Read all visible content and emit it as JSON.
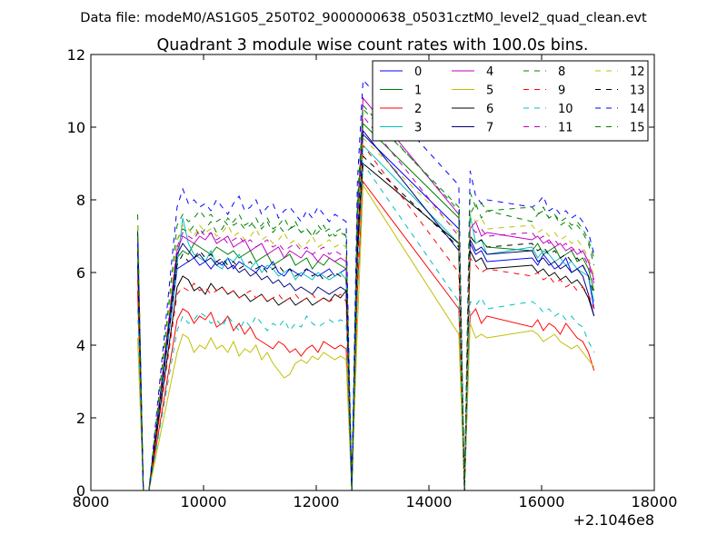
{
  "figure": {
    "suptitle": "Data file: modeM0/AS1G05_250T02_9000000638_05031cztM0_level2_quad_clean.evt",
    "x_offset_label": "+2.1046e8"
  },
  "chart_data": {
    "type": "line",
    "title": "Quadrant 3 module wise count rates with 100.0s bins.",
    "xlabel": "",
    "ylabel": "",
    "xlim": [
      8000,
      18000
    ],
    "ylim": [
      0,
      12
    ],
    "xticks": [
      8000,
      10000,
      12000,
      14000,
      16000,
      18000
    ],
    "yticks": [
      0,
      2,
      4,
      6,
      8,
      10,
      12
    ],
    "grid": false,
    "legend_position": "top-right",
    "legend_columns": 4,
    "segments": [
      [
        8830,
        9030
      ],
      [
        9530,
        12830
      ],
      [
        14530,
        15030
      ],
      [
        15830,
        17330
      ]
    ],
    "bin_width": 100,
    "series": [
      {
        "name": "0",
        "color": "#0000ff",
        "dash": "solid",
        "values": [
          7.0,
          0,
          0,
          6.1,
          6.2,
          6.3,
          6.4,
          6.2,
          6.3,
          6.1,
          6.3,
          6.2,
          6.4,
          6.1,
          6.3,
          6.2,
          6.1,
          6.0,
          6.2,
          6.1,
          6.3,
          6.0,
          5.9,
          6.1,
          6.0,
          5.9,
          6.1,
          6.0,
          5.9,
          6.0,
          6.1,
          5.9,
          6.0,
          6.1,
          0,
          7.5,
          9.8,
          7.2,
          0,
          6.8,
          6.5,
          6.6,
          6.3,
          6.4,
          6.2,
          6.5,
          6.3,
          6.1,
          6.2,
          6.4,
          6.0,
          6.1,
          6.2,
          5.9,
          5.0
        ]
      },
      {
        "name": "1",
        "color": "#008000",
        "dash": "solid",
        "values": [
          7.2,
          0,
          0,
          6.4,
          6.6,
          6.5,
          6.8,
          6.7,
          6.6,
          6.5,
          6.7,
          6.6,
          6.5,
          6.6,
          6.4,
          6.5,
          6.6,
          6.3,
          6.4,
          6.5,
          6.2,
          6.3,
          6.4,
          6.5,
          6.2,
          6.3,
          6.4,
          6.1,
          6.3,
          6.2,
          6.4,
          6.3,
          6.2,
          6.1,
          0,
          7.8,
          10.1,
          7.5,
          0,
          7.0,
          6.8,
          6.9,
          6.7,
          6.6,
          6.8,
          6.5,
          6.6,
          6.7,
          6.4,
          6.5,
          6.6,
          6.3,
          6.4,
          6.1,
          5.5
        ]
      },
      {
        "name": "2",
        "color": "#ff0000",
        "dash": "solid",
        "values": [
          5.5,
          0,
          0,
          4.7,
          5.0,
          4.9,
          4.6,
          4.8,
          4.7,
          4.9,
          4.5,
          4.6,
          4.8,
          4.4,
          4.6,
          4.3,
          4.5,
          4.2,
          4.1,
          4.0,
          3.9,
          4.1,
          4.0,
          3.8,
          3.9,
          3.7,
          3.9,
          4.0,
          3.8,
          4.1,
          4.0,
          3.9,
          4.0,
          3.9,
          0,
          5.5,
          8.5,
          5.0,
          0,
          4.8,
          5.0,
          4.6,
          4.8,
          4.5,
          4.7,
          4.4,
          4.6,
          4.5,
          4.3,
          4.6,
          4.4,
          4.2,
          4.1,
          3.8,
          3.3
        ]
      },
      {
        "name": "3",
        "color": "#00bfbf",
        "dash": "solid",
        "values": [
          6.5,
          0,
          0,
          6.2,
          7.5,
          6.8,
          6.5,
          6.4,
          6.3,
          6.6,
          6.2,
          6.1,
          6.4,
          6.3,
          6.5,
          6.2,
          6.1,
          6.3,
          6.0,
          6.2,
          6.1,
          5.9,
          6.0,
          6.1,
          5.8,
          6.0,
          5.9,
          5.8,
          6.0,
          5.9,
          5.8,
          5.9,
          6.0,
          5.8,
          0,
          6.5,
          9.5,
          6.8,
          0,
          7.6,
          6.8,
          6.9,
          6.5,
          6.7,
          6.4,
          6.6,
          6.5,
          6.3,
          6.4,
          6.2,
          6.3,
          6.1,
          6.0,
          5.9,
          5.2
        ]
      },
      {
        "name": "4",
        "color": "#bf00bf",
        "dash": "solid",
        "values": [
          6.8,
          0,
          0,
          6.6,
          7.0,
          6.9,
          6.8,
          7.0,
          6.9,
          7.1,
          6.8,
          6.9,
          7.0,
          6.7,
          6.8,
          6.9,
          6.6,
          6.7,
          6.8,
          6.5,
          6.6,
          6.7,
          6.4,
          6.6,
          6.5,
          6.4,
          6.6,
          6.5,
          6.3,
          6.5,
          6.4,
          6.3,
          6.4,
          6.3,
          0,
          7.3,
          10.8,
          7.6,
          0,
          7.2,
          7.4,
          7.0,
          7.1,
          6.9,
          7.0,
          6.8,
          6.9,
          6.7,
          6.8,
          6.6,
          6.7,
          6.5,
          6.6,
          6.3,
          5.8
        ]
      },
      {
        "name": "5",
        "color": "#bfbf00",
        "dash": "solid",
        "values": [
          4.2,
          0,
          0,
          3.8,
          4.3,
          4.2,
          3.8,
          4.0,
          3.9,
          4.2,
          3.9,
          4.0,
          3.8,
          4.1,
          3.7,
          3.9,
          3.8,
          4.0,
          3.6,
          3.8,
          3.5,
          3.3,
          3.1,
          3.2,
          3.5,
          3.6,
          3.5,
          3.7,
          3.6,
          3.8,
          3.7,
          3.6,
          3.7,
          3.6,
          0,
          4.5,
          8.4,
          4.3,
          0,
          4.6,
          4.2,
          4.3,
          4.2,
          4.4,
          4.3,
          4.1,
          4.2,
          4.3,
          4.1,
          4.0,
          3.9,
          4.0,
          3.8,
          3.6,
          3.4
        ]
      },
      {
        "name": "6",
        "color": "#000000",
        "dash": "solid",
        "values": [
          6.2,
          0,
          0,
          5.6,
          5.9,
          5.8,
          5.5,
          5.6,
          5.4,
          5.7,
          5.5,
          5.6,
          5.4,
          5.5,
          5.3,
          5.4,
          5.2,
          5.3,
          5.4,
          5.2,
          5.3,
          5.1,
          5.2,
          5.3,
          5.1,
          5.2,
          5.3,
          5.1,
          5.2,
          5.3,
          5.2,
          5.4,
          5.3,
          5.5,
          0,
          6.5,
          9.0,
          6.8,
          0,
          6.6,
          6.3,
          6.4,
          6.1,
          6.2,
          6.0,
          6.1,
          5.9,
          6.0,
          5.8,
          5.9,
          5.7,
          5.8,
          5.6,
          5.3,
          4.8
        ]
      },
      {
        "name": "7",
        "color": "#00007f",
        "dash": "solid",
        "values": [
          7.1,
          0,
          0,
          6.5,
          6.8,
          6.6,
          6.4,
          6.5,
          6.3,
          6.4,
          6.2,
          6.3,
          6.1,
          6.2,
          6.0,
          6.1,
          5.9,
          6.0,
          5.8,
          5.9,
          5.7,
          5.8,
          5.6,
          5.7,
          5.5,
          5.6,
          5.5,
          5.4,
          5.6,
          5.5,
          5.4,
          5.5,
          5.6,
          5.5,
          0,
          6.9,
          9.9,
          6.6,
          0,
          6.9,
          6.6,
          6.7,
          6.5,
          6.6,
          6.3,
          6.4,
          6.2,
          6.3,
          6.1,
          6.2,
          6.0,
          6.1,
          5.9,
          5.4,
          4.8
        ]
      },
      {
        "name": "8",
        "color": "#008000",
        "dash": "dashed",
        "values": [
          7.6,
          0,
          0,
          6.9,
          7.2,
          7.1,
          7.3,
          7.0,
          7.2,
          7.4,
          7.1,
          7.2,
          7.5,
          7.3,
          7.4,
          7.2,
          7.3,
          7.5,
          7.2,
          7.4,
          7.1,
          7.3,
          7.5,
          7.2,
          7.3,
          7.1,
          7.2,
          7.0,
          7.3,
          7.1,
          7.2,
          7.0,
          7.1,
          7.0,
          0,
          8.0,
          10.5,
          7.8,
          0,
          7.6,
          7.9,
          7.5,
          7.7,
          7.4,
          7.6,
          7.8,
          7.5,
          7.6,
          7.3,
          7.4,
          7.2,
          7.3,
          7.1,
          6.8,
          6.2
        ]
      },
      {
        "name": "9",
        "color": "#ff0000",
        "dash": "dashed",
        "values": [
          5.8,
          0,
          0,
          5.4,
          5.6,
          5.5,
          5.7,
          5.5,
          5.6,
          5.4,
          5.5,
          5.6,
          5.4,
          5.5,
          5.3,
          5.4,
          5.5,
          5.3,
          5.4,
          5.2,
          5.3,
          5.4,
          5.2,
          5.3,
          5.4,
          5.2,
          5.3,
          5.4,
          5.2,
          5.3,
          5.2,
          5.3,
          5.4,
          5.2,
          0,
          6.0,
          9.5,
          6.0,
          0,
          6.4,
          6.2,
          6.0,
          6.1,
          5.9,
          6.0,
          5.8,
          5.9,
          5.7,
          5.8,
          5.6,
          5.7,
          5.5,
          5.6,
          5.4,
          5.0
        ]
      },
      {
        "name": "10",
        "color": "#00bfbf",
        "dash": "dashed",
        "values": [
          5.0,
          0,
          0,
          4.4,
          4.8,
          4.6,
          4.7,
          4.9,
          4.8,
          4.6,
          4.7,
          4.5,
          4.8,
          4.6,
          4.4,
          4.7,
          4.5,
          4.8,
          4.6,
          4.4,
          4.6,
          4.5,
          4.7,
          4.4,
          4.6,
          4.5,
          4.8,
          4.6,
          4.5,
          4.6,
          4.7,
          4.6,
          4.7,
          4.6,
          0,
          5.5,
          9.0,
          5.2,
          0,
          5.2,
          5.1,
          5.3,
          5.0,
          5.2,
          5.1,
          4.9,
          5.0,
          4.8,
          4.9,
          4.7,
          4.8,
          4.6,
          4.5,
          4.1,
          3.8
        ]
      },
      {
        "name": "11",
        "color": "#bf00bf",
        "dash": "dashed",
        "values": [
          6.9,
          0,
          0,
          6.7,
          7.1,
          7.0,
          6.9,
          7.2,
          7.0,
          7.1,
          6.9,
          7.0,
          6.8,
          6.9,
          7.0,
          6.8,
          6.9,
          6.7,
          6.8,
          6.9,
          6.7,
          6.8,
          6.6,
          6.7,
          6.8,
          6.6,
          6.7,
          6.5,
          6.6,
          6.7,
          6.5,
          6.6,
          6.5,
          6.4,
          0,
          7.3,
          10.3,
          7.0,
          0,
          7.3,
          7.1,
          7.2,
          7.0,
          7.1,
          6.9,
          7.0,
          6.8,
          6.9,
          6.7,
          6.8,
          6.6,
          6.7,
          6.5,
          6.2,
          5.7
        ]
      },
      {
        "name": "12",
        "color": "#bfbf00",
        "dash": "dashed",
        "values": [
          7.3,
          0,
          0,
          6.9,
          7.3,
          7.2,
          7.0,
          7.3,
          7.1,
          7.2,
          7.0,
          7.1,
          7.3,
          7.0,
          7.1,
          6.9,
          7.0,
          7.2,
          6.9,
          7.0,
          6.8,
          6.9,
          7.1,
          6.8,
          6.9,
          6.7,
          6.8,
          7.0,
          6.7,
          6.8,
          6.9,
          6.7,
          6.8,
          6.7,
          0,
          7.2,
          9.7,
          7.1,
          0,
          7.6,
          7.4,
          7.5,
          7.2,
          7.3,
          7.1,
          7.2,
          7.0,
          7.1,
          6.9,
          7.0,
          6.8,
          6.9,
          6.7,
          6.4,
          5.9
        ]
      },
      {
        "name": "13",
        "color": "#000000",
        "dash": "dashed",
        "values": [
          6.6,
          0,
          0,
          6.2,
          6.5,
          6.3,
          6.4,
          6.6,
          6.4,
          6.5,
          6.3,
          6.4,
          6.2,
          6.3,
          6.1,
          6.2,
          6.3,
          6.1,
          6.2,
          6.0,
          6.1,
          6.2,
          6.0,
          6.1,
          5.9,
          6.0,
          6.1,
          5.9,
          6.0,
          5.8,
          5.9,
          6.0,
          5.9,
          5.8,
          0,
          6.8,
          9.2,
          6.7,
          0,
          7.0,
          6.8,
          6.9,
          6.7,
          6.8,
          6.6,
          6.7,
          6.5,
          6.6,
          6.4,
          6.5,
          6.3,
          6.4,
          6.2,
          5.9,
          5.4
        ]
      },
      {
        "name": "14",
        "color": "#0000ff",
        "dash": "dashed",
        "values": [
          6.8,
          0,
          0,
          7.8,
          8.3,
          7.9,
          8.0,
          7.8,
          7.9,
          7.7,
          8.0,
          7.8,
          7.6,
          7.9,
          8.1,
          7.7,
          7.8,
          8.0,
          7.6,
          7.8,
          7.9,
          7.5,
          7.7,
          7.8,
          7.6,
          7.4,
          7.7,
          7.5,
          7.8,
          7.6,
          7.4,
          7.6,
          7.5,
          7.4,
          0,
          8.5,
          11.3,
          8.4,
          0,
          8.8,
          8.1,
          7.9,
          8.0,
          7.8,
          7.9,
          8.1,
          7.7,
          7.8,
          7.6,
          7.7,
          7.5,
          7.6,
          7.4,
          7.1,
          6.5
        ]
      },
      {
        "name": "15",
        "color": "#008000",
        "dash": "dashed",
        "values": [
          7.0,
          0,
          0,
          7.3,
          7.6,
          7.4,
          7.5,
          7.7,
          7.5,
          7.6,
          7.4,
          7.5,
          7.3,
          7.4,
          7.6,
          7.3,
          7.4,
          7.2,
          7.3,
          7.5,
          7.2,
          7.3,
          7.1,
          7.2,
          7.4,
          7.1,
          7.2,
          7.0,
          7.1,
          7.3,
          7.0,
          7.1,
          7.2,
          7.0,
          0,
          7.6,
          10.6,
          7.7,
          0,
          8.2,
          7.8,
          7.9,
          7.7,
          7.8,
          7.6,
          7.7,
          7.5,
          7.6,
          7.4,
          7.5,
          7.3,
          7.4,
          7.2,
          6.9,
          6.4
        ]
      }
    ]
  }
}
